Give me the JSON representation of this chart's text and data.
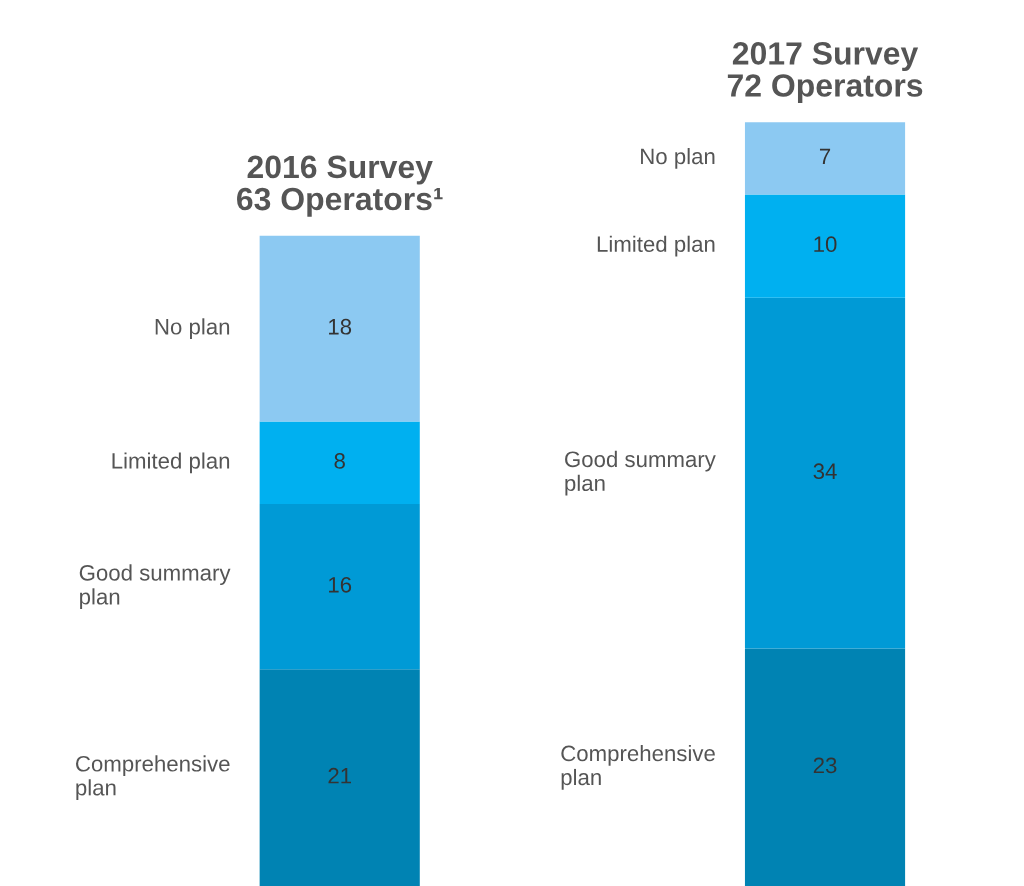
{
  "chart_data": {
    "type": "bar",
    "stacked": true,
    "data_labels": true,
    "categories": [
      "2016 Survey\n63 Operators¹",
      "2017 Survey\n72 Operators"
    ],
    "series": [
      {
        "name": "Comprehensive plan",
        "color": "#0083b3",
        "values": [
          21,
          23
        ]
      },
      {
        "name": "Good summary plan",
        "color": "#009ad6",
        "values": [
          16,
          34
        ]
      },
      {
        "name": "Limited plan",
        "color": "#00b0f0",
        "values": [
          8,
          10
        ]
      },
      {
        "name": "No plan",
        "color": "#8cc9f2",
        "values": [
          18,
          7
        ]
      }
    ]
  }
}
